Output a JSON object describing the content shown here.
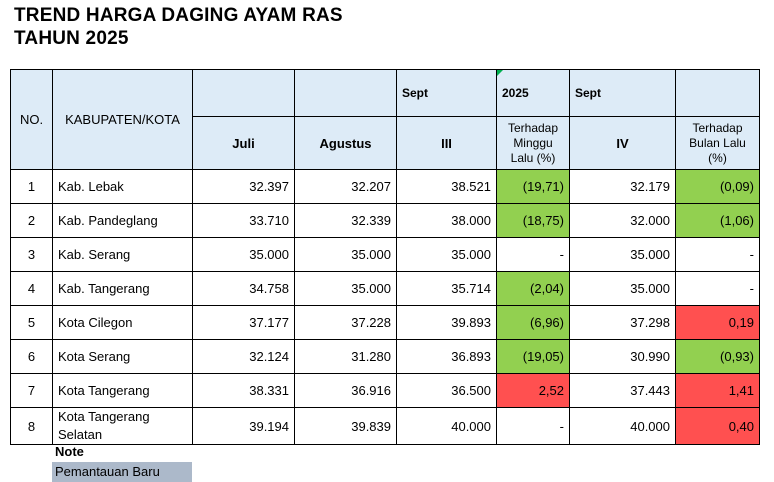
{
  "title": {
    "line1": "TREND HARGA DAGING AYAM RAS",
    "line2": "TAHUN 2025"
  },
  "header": {
    "no": "NO.",
    "kabupaten": "KABUPATEN/KOTA",
    "top_sept_a": "Sept",
    "top_year": "2025",
    "top_sept_b": "Sept",
    "juli": "Juli",
    "agustus": "Agustus",
    "week3": "III",
    "change_week": "Terhadap Minggu Lalu (%)",
    "week4": "IV",
    "change_month": "Terhadap Bulan Lalu (%)"
  },
  "rows": [
    {
      "no": "1",
      "name": "Kab. Lebak",
      "juli": "32.397",
      "agustus": "32.207",
      "w3": "38.521",
      "chg_week": "(19,71)",
      "w4": "32.179",
      "chg_month": "(0,09)"
    },
    {
      "no": "2",
      "name": "Kab. Pandeglang",
      "juli": "33.710",
      "agustus": "32.339",
      "w3": "38.000",
      "chg_week": "(18,75)",
      "w4": "32.000",
      "chg_month": "(1,06)"
    },
    {
      "no": "3",
      "name": "Kab. Serang",
      "juli": "35.000",
      "agustus": "35.000",
      "w3": "35.000",
      "chg_week": "-",
      "w4": "35.000",
      "chg_month": "-"
    },
    {
      "no": "4",
      "name": "Kab. Tangerang",
      "juli": "34.758",
      "agustus": "35.000",
      "w3": "35.714",
      "chg_week": "(2,04)",
      "w4": "35.000",
      "chg_month": "-"
    },
    {
      "no": "5",
      "name": "Kota Cilegon",
      "juli": "37.177",
      "agustus": "37.228",
      "w3": "39.893",
      "chg_week": "(6,96)",
      "w4": "37.298",
      "chg_month": "0,19"
    },
    {
      "no": "6",
      "name": "Kota Serang",
      "juli": "32.124",
      "agustus": "31.280",
      "w3": "36.893",
      "chg_week": "(19,05)",
      "w4": "30.990",
      "chg_month": "(0,93)"
    },
    {
      "no": "7",
      "name": "Kota Tangerang",
      "juli": "38.331",
      "agustus": "36.916",
      "w3": "36.500",
      "chg_week": "2,52",
      "w4": "37.443",
      "chg_month": "1,41"
    },
    {
      "no": "8",
      "name": "Kota Tangerang Selatan",
      "juli": "39.194",
      "agustus": "39.839",
      "w3": "40.000",
      "chg_week": "-",
      "w4": "40.000",
      "chg_month": "0,40"
    }
  ],
  "note": {
    "label": "Note",
    "legend": "Pemantauan Baru"
  },
  "colors": {
    "header_bg": "#ddebf7",
    "decrease": "#92d050",
    "increase": "#ff5050",
    "new_monitoring": "#acb9ca"
  }
}
